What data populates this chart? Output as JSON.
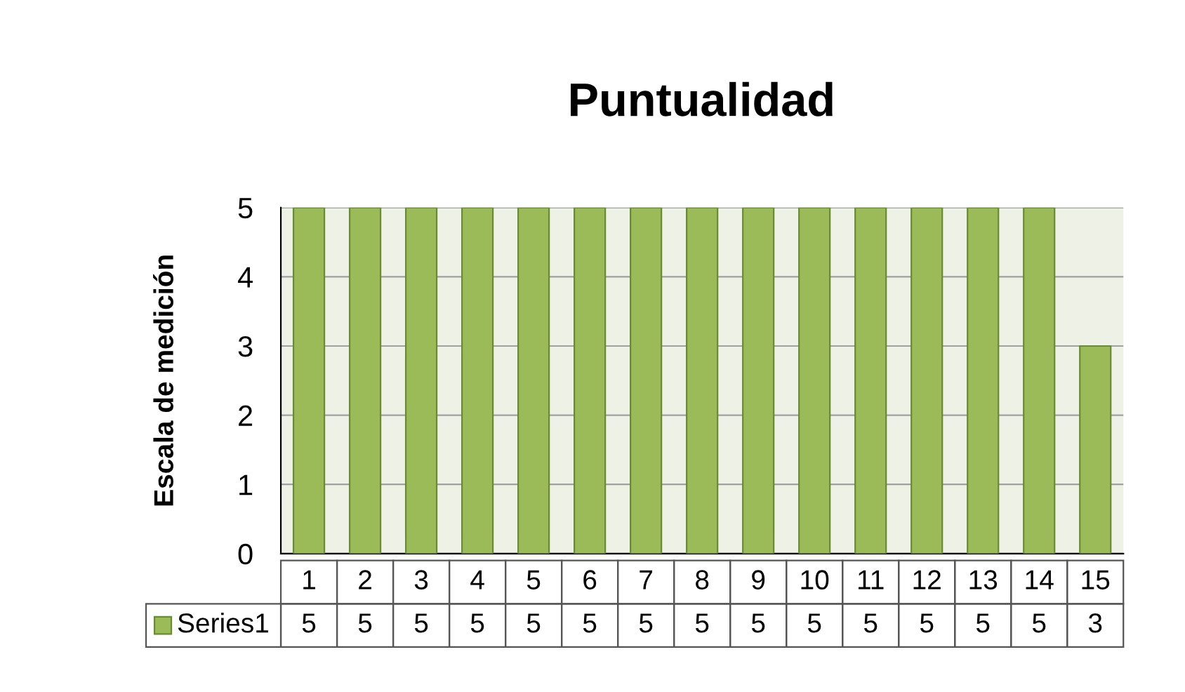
{
  "chart_data": {
    "type": "bar",
    "title": "Puntualidad",
    "ylabel": "Escala de medición",
    "categories": [
      "1",
      "2",
      "3",
      "4",
      "5",
      "6",
      "7",
      "8",
      "9",
      "10",
      "11",
      "12",
      "13",
      "14",
      "15"
    ],
    "series": [
      {
        "name": "Series1",
        "color": "#9bbb59",
        "values": [
          5,
          5,
          5,
          5,
          5,
          5,
          5,
          5,
          5,
          5,
          5,
          5,
          5,
          5,
          3
        ]
      }
    ],
    "ylim": [
      0,
      5
    ],
    "yticks": [
      0,
      1,
      2,
      3,
      4,
      5
    ],
    "grid": "y",
    "data_labels": true
  }
}
